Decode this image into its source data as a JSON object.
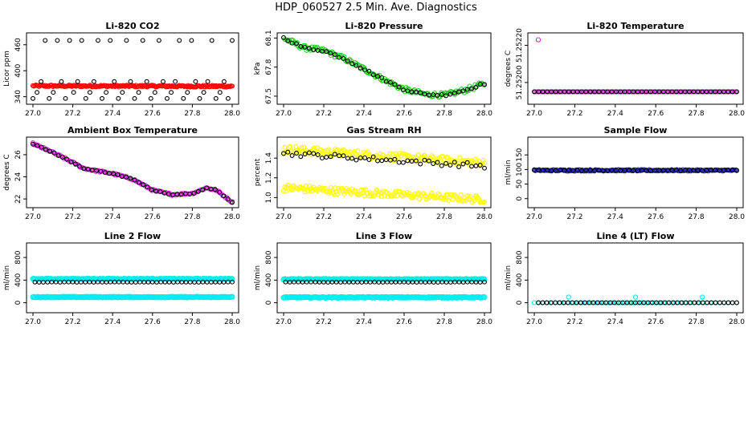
{
  "title": "HDP_060527  2.5 Min. Ave. Diagnostics",
  "colors": {
    "red": "#ff0000",
    "black": "#000000",
    "green": "#22cc22",
    "magenta": "#dd22dd",
    "yellow": "#ffff00",
    "blue": "#2222cc",
    "cyan": "#00eeee"
  },
  "chart_data": [
    {
      "type": "scatter",
      "title": "Li-820 CO2",
      "ylabel": "Licor ppm",
      "xlim": [
        27.0,
        28.0
      ],
      "ylim": [
        330,
        480
      ],
      "xticks": [
        "27.0",
        "27.2",
        "27.4",
        "27.6",
        "27.8",
        "28.0"
      ],
      "yticks": [
        {
          "v": 340,
          "label": "340"
        },
        {
          "v": 400,
          "label": "400"
        },
        {
          "v": 460,
          "label": "460"
        }
      ],
      "series": [
        {
          "name": "licor-co2-raw",
          "color": "red",
          "style": "dense",
          "x_start": 27.0,
          "x_end": 28.0,
          "count": 200,
          "start": 365,
          "end": 364,
          "noise": 2,
          "size": 2.5
        },
        {
          "name": "licor-co2-ave",
          "color": "black",
          "style": "values",
          "x_start": 27.0,
          "x_end": 28.0,
          "values": [
            336,
            350,
            375,
            470,
            336,
            350,
            470,
            375,
            336,
            470,
            350,
            375,
            470,
            336,
            350,
            375,
            470,
            336,
            350,
            470,
            375,
            336,
            350,
            470,
            375,
            336,
            350,
            470,
            375,
            336,
            350,
            470,
            375,
            336,
            350,
            375,
            470,
            336,
            350,
            470,
            375,
            336,
            350,
            375,
            470,
            336,
            350,
            375,
            336,
            470
          ],
          "size": 2.4
        }
      ]
    },
    {
      "type": "scatter",
      "title": "Li-820 Pressure",
      "ylabel": "kPa",
      "xlim": [
        27.0,
        28.0
      ],
      "ylim": [
        67.45,
        68.12
      ],
      "xticks": [
        "27.0",
        "27.2",
        "27.4",
        "27.6",
        "27.8",
        "28.0"
      ],
      "yticks": [
        {
          "v": 67.5,
          "label": "67.5"
        },
        {
          "v": 67.8,
          "label": "67.8"
        },
        {
          "v": 68.1,
          "label": "68.1"
        }
      ],
      "series": [
        {
          "name": "licor-pressure-raw",
          "color": "green",
          "style": "curve",
          "x_start": 27.0,
          "x_end": 28.0,
          "count": 150,
          "points": [
            [
              27.0,
              68.1
            ],
            [
              27.1,
              68.0
            ],
            [
              27.2,
              67.97
            ],
            [
              27.3,
              67.89
            ],
            [
              27.4,
              67.78
            ],
            [
              27.5,
              67.67
            ],
            [
              27.6,
              67.57
            ],
            [
              27.7,
              67.52
            ],
            [
              27.8,
              67.51
            ],
            [
              27.9,
              67.56
            ],
            [
              28.0,
              67.63
            ]
          ],
          "noise": 0.025,
          "size": 2.5
        },
        {
          "name": "licor-pressure-ave",
          "color": "black",
          "style": "curve",
          "x_start": 27.0,
          "x_end": 28.0,
          "count": 48,
          "points": [
            [
              27.0,
              68.1
            ],
            [
              27.1,
              68.0
            ],
            [
              27.2,
              67.97
            ],
            [
              27.3,
              67.89
            ],
            [
              27.4,
              67.78
            ],
            [
              27.5,
              67.67
            ],
            [
              27.6,
              67.57
            ],
            [
              27.7,
              67.52
            ],
            [
              27.8,
              67.51
            ],
            [
              27.9,
              67.56
            ],
            [
              28.0,
              67.63
            ]
          ],
          "noise": 0.01,
          "size": 2.4
        }
      ]
    },
    {
      "type": "scatter",
      "title": "Li-820 Temperature",
      "ylabel": "degrees C",
      "xlim": [
        27.0,
        28.0
      ],
      "ylim": [
        51.2519,
        51.25225
      ],
      "xticks": [
        "27.0",
        "27.2",
        "27.4",
        "27.6",
        "27.8",
        "28.0"
      ],
      "yticks": [
        {
          "v": 51.252,
          "label": "51.25200"
        },
        {
          "v": 51.2522,
          "label": "51.25220"
        }
      ],
      "series": [
        {
          "name": "licor-temp-raw",
          "color": "magenta",
          "style": "dense",
          "x_start": 27.0,
          "x_end": 28.0,
          "count": 150,
          "start": 51.25195,
          "end": 51.25195,
          "noise": 0,
          "size": 2.5
        },
        {
          "name": "licor-temp-outlier",
          "color": "magenta",
          "style": "values",
          "x_start": 27.02,
          "x_end": 27.02,
          "values": [
            51.25223
          ],
          "size": 2.6
        },
        {
          "name": "licor-temp-ave",
          "color": "black",
          "style": "dense",
          "x_start": 27.0,
          "x_end": 28.0,
          "count": 48,
          "start": 51.25195,
          "end": 51.25195,
          "noise": 0,
          "size": 2.4
        }
      ]
    },
    {
      "type": "scatter",
      "title": "Ambient Box Temperature",
      "ylabel": "degrees C",
      "xlim": [
        27.0,
        28.0
      ],
      "ylim": [
        21.5,
        27.3
      ],
      "xticks": [
        "27.0",
        "27.2",
        "27.4",
        "27.6",
        "27.8",
        "28.0"
      ],
      "yticks": [
        {
          "v": 22,
          "label": "22"
        },
        {
          "v": 24,
          "label": "24"
        },
        {
          "v": 26,
          "label": "26"
        }
      ],
      "series": [
        {
          "name": "box-temp-raw",
          "color": "magenta",
          "style": "curve",
          "x_start": 27.0,
          "x_end": 28.0,
          "count": 150,
          "points": [
            [
              27.0,
              27.0
            ],
            [
              27.1,
              26.2
            ],
            [
              27.2,
              25.3
            ],
            [
              27.25,
              24.8
            ],
            [
              27.3,
              24.6
            ],
            [
              27.4,
              24.3
            ],
            [
              27.5,
              23.8
            ],
            [
              27.6,
              22.8
            ],
            [
              27.7,
              22.4
            ],
            [
              27.8,
              22.5
            ],
            [
              27.87,
              23.0
            ],
            [
              27.92,
              22.8
            ],
            [
              28.0,
              21.7
            ]
          ],
          "noise": 0.08,
          "size": 2.5
        },
        {
          "name": "box-temp-ave",
          "color": "black",
          "style": "curve",
          "x_start": 27.0,
          "x_end": 28.0,
          "count": 48,
          "points": [
            [
              27.0,
              27.0
            ],
            [
              27.1,
              26.2
            ],
            [
              27.2,
              25.3
            ],
            [
              27.25,
              24.8
            ],
            [
              27.3,
              24.6
            ],
            [
              27.4,
              24.3
            ],
            [
              27.5,
              23.8
            ],
            [
              27.6,
              22.8
            ],
            [
              27.7,
              22.4
            ],
            [
              27.8,
              22.5
            ],
            [
              27.87,
              23.0
            ],
            [
              27.92,
              22.8
            ],
            [
              28.0,
              21.7
            ]
          ],
          "noise": 0.04,
          "size": 2.4
        }
      ]
    },
    {
      "type": "scatter",
      "title": "Gas Stream RH",
      "ylabel": "percent",
      "xlim": [
        27.0,
        28.0
      ],
      "ylim": [
        0.93,
        1.58
      ],
      "xticks": [
        "27.0",
        "27.2",
        "27.4",
        "27.6",
        "27.8",
        "28.0"
      ],
      "yticks": [
        {
          "v": 1.0,
          "label": "1.0"
        },
        {
          "v": 1.2,
          "label": "1.2"
        },
        {
          "v": 1.4,
          "label": "1.4"
        }
      ],
      "series": [
        {
          "name": "rh-upper-raw",
          "color": "yellow",
          "style": "dense",
          "x_start": 27.0,
          "x_end": 28.0,
          "count": 180,
          "start": 1.49,
          "end": 1.35,
          "noise": 0.04,
          "size": 2.5
        },
        {
          "name": "rh-lower-raw",
          "color": "yellow",
          "style": "dense",
          "x_start": 27.0,
          "x_end": 28.0,
          "count": 180,
          "start": 1.1,
          "end": 0.98,
          "noise": 0.035,
          "size": 2.5
        },
        {
          "name": "rh-ave",
          "color": "black",
          "style": "dense",
          "x_start": 27.0,
          "x_end": 28.0,
          "count": 48,
          "start": 1.45,
          "end": 1.32,
          "noise": 0.025,
          "size": 2.4
        }
      ]
    },
    {
      "type": "scatter",
      "title": "Sample Flow",
      "ylabel": "ml/min",
      "xlim": [
        27.0,
        28.0
      ],
      "ylim": [
        -20,
        200
      ],
      "xticks": [
        "27.0",
        "27.2",
        "27.4",
        "27.6",
        "27.8",
        "28.0"
      ],
      "yticks": [
        {
          "v": 0,
          "label": "0"
        },
        {
          "v": 50,
          "label": "50"
        },
        {
          "v": 100,
          "label": "100"
        },
        {
          "v": 150,
          "label": "150"
        }
      ],
      "series": [
        {
          "name": "sample-flow-raw",
          "color": "blue",
          "style": "dense",
          "x_start": 27.0,
          "x_end": 28.0,
          "count": 200,
          "start": 97,
          "end": 97,
          "noise": 2.5,
          "size": 2.5
        },
        {
          "name": "sample-flow-ave",
          "color": "black",
          "style": "dense",
          "x_start": 27.0,
          "x_end": 28.0,
          "count": 48,
          "start": 97,
          "end": 97,
          "noise": 1.2,
          "size": 2.4
        }
      ]
    },
    {
      "type": "scatter",
      "title": "Line 2 Flow",
      "ylabel": "ml/min",
      "xlim": [
        27.0,
        28.0
      ],
      "ylim": [
        -120,
        1000
      ],
      "xticks": [
        "27.0",
        "27.2",
        "27.4",
        "27.6",
        "27.8",
        "28.0"
      ],
      "yticks": [
        {
          "v": 0,
          "label": "0"
        },
        {
          "v": 400,
          "label": "400"
        },
        {
          "v": 800,
          "label": "800"
        }
      ],
      "series": [
        {
          "name": "line2-upper-raw",
          "color": "cyan",
          "style": "dense",
          "x_start": 27.0,
          "x_end": 28.0,
          "count": 200,
          "start": 420,
          "end": 420,
          "noise": 6,
          "size": 3
        },
        {
          "name": "line2-lower-raw",
          "color": "cyan",
          "style": "dense",
          "x_start": 27.0,
          "x_end": 28.0,
          "count": 200,
          "start": 100,
          "end": 100,
          "noise": 6,
          "size": 3
        },
        {
          "name": "line2-ave",
          "color": "black",
          "style": "dense",
          "x_start": 27.01,
          "x_end": 28.0,
          "count": 48,
          "start": 365,
          "end": 365,
          "noise": 2,
          "size": 2.4
        }
      ]
    },
    {
      "type": "scatter",
      "title": "Line 3 Flow",
      "ylabel": "ml/min",
      "xlim": [
        27.0,
        28.0
      ],
      "ylim": [
        -120,
        1000
      ],
      "xticks": [
        "27.0",
        "27.2",
        "27.4",
        "27.6",
        "27.8",
        "28.0"
      ],
      "yticks": [
        {
          "v": 0,
          "label": "0"
        },
        {
          "v": 400,
          "label": "400"
        },
        {
          "v": 800,
          "label": "800"
        }
      ],
      "series": [
        {
          "name": "line3-upper-raw",
          "color": "cyan",
          "style": "dense",
          "x_start": 27.0,
          "x_end": 28.0,
          "count": 200,
          "start": 415,
          "end": 415,
          "noise": 6,
          "size": 3
        },
        {
          "name": "line3-lower-raw",
          "color": "cyan",
          "style": "dense",
          "x_start": 27.0,
          "x_end": 28.0,
          "count": 200,
          "start": 95,
          "end": 95,
          "noise": 8,
          "size": 3
        },
        {
          "name": "line3-ave",
          "color": "black",
          "style": "dense",
          "x_start": 27.01,
          "x_end": 28.0,
          "count": 48,
          "start": 365,
          "end": 365,
          "noise": 2,
          "size": 2.4
        }
      ]
    },
    {
      "type": "scatter",
      "title": "Line 4 (LT) Flow",
      "ylabel": "ml/min",
      "xlim": [
        27.0,
        28.0
      ],
      "ylim": [
        -120,
        1000
      ],
      "xticks": [
        "27.0",
        "27.2",
        "27.4",
        "27.6",
        "27.8",
        "28.0"
      ],
      "yticks": [
        {
          "v": 0,
          "label": "0"
        },
        {
          "v": 400,
          "label": "400"
        },
        {
          "v": 800,
          "label": "800"
        }
      ],
      "series": [
        {
          "name": "line4-raw",
          "color": "cyan",
          "style": "dense",
          "x_start": 27.0,
          "x_end": 28.0,
          "count": 48,
          "start": 0,
          "end": 0,
          "noise": 0,
          "size": 2.5
        },
        {
          "name": "line4-spikes",
          "color": "cyan",
          "style": "values",
          "x_start": 27.17,
          "x_end": 27.83,
          "values": [
            100,
            100,
            100
          ],
          "size": 2.6
        },
        {
          "name": "line4-ave",
          "color": "black",
          "style": "dense",
          "x_start": 27.02,
          "x_end": 28.0,
          "count": 48,
          "start": 0,
          "end": 0,
          "noise": 0,
          "size": 2.4
        }
      ]
    }
  ]
}
